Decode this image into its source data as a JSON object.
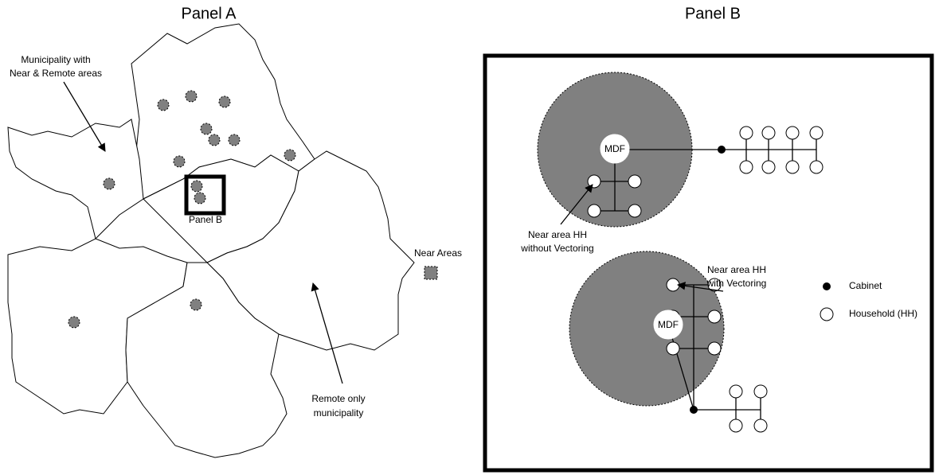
{
  "panel_a": {
    "title": "Panel A",
    "annotations": {
      "municipality_near_remote": [
        "Municipality with",
        "Near & Remote areas"
      ],
      "remote_only": [
        "Remote only",
        "municipality"
      ],
      "panel_b_inset": "Panel B"
    },
    "legend": {
      "near_areas": "Near Areas"
    }
  },
  "panel_b": {
    "title": "Panel B",
    "mdf_labels": [
      "MDF",
      "MDF"
    ],
    "annotations": {
      "without_vectoring": [
        "Near area HH",
        "without Vectoring"
      ],
      "with_vectoring": [
        "Near area HH",
        "with Vectoring"
      ]
    },
    "legend": {
      "cabinet": "Cabinet",
      "household": "Household (HH)"
    }
  }
}
